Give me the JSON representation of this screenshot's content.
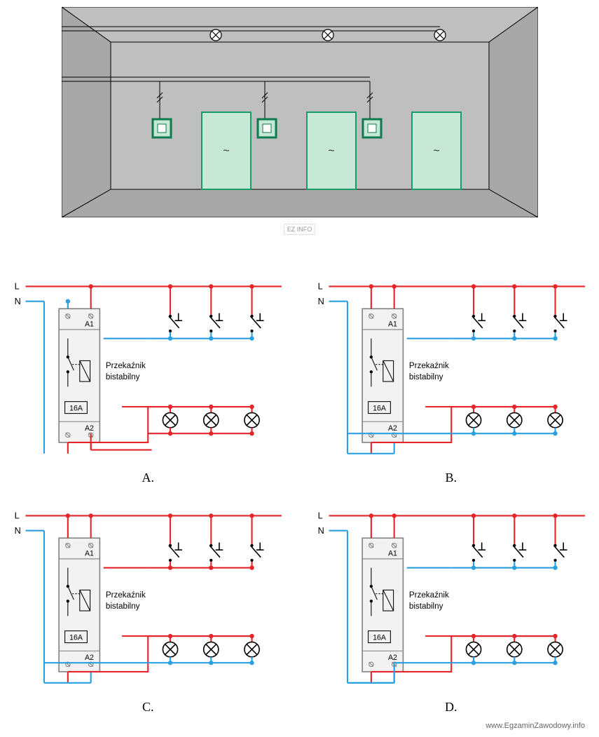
{
  "hallway": {
    "wall_color": "#bfbfbf",
    "wall_color_dark": "#a8a8a8",
    "door_fill": "#c7e8d6",
    "door_stroke": "#1a9c6a",
    "switch_fill": "#c7e8d6",
    "switch_stroke": "#0e7a4f",
    "lamp_stroke": "#000000",
    "wire_color": "#000000",
    "door_mark": "~",
    "num_doors": 3,
    "num_lamps": 3,
    "num_switches": 3
  },
  "schematics": {
    "common": {
      "L_label": "L",
      "N_label": "N",
      "relay_label_1": "Przekaźnik",
      "relay_label_2": "bistabilny",
      "relay_rating": "16A",
      "term_A1": "A1",
      "term_A2": "A2",
      "wire_L_color": "#e4252a",
      "wire_N_color": "#2aa0e0",
      "relay_stroke": "#808080",
      "relay_fill": "#f2f2f2",
      "lamp_stroke": "#000000",
      "button_stroke": "#000000",
      "font_family": "Arial",
      "label_fontsize": 11,
      "LN_fontsize": 12,
      "num_buttons": 3,
      "num_lamps": 3
    },
    "items": [
      {
        "id": "A",
        "contact_top": "N",
        "btn_return": "N",
        "a2_to": "L",
        "lamp_bus": "L"
      },
      {
        "id": "B",
        "contact_top": "L",
        "btn_return": "N",
        "a2_to": "N",
        "lamp_bus": "N"
      },
      {
        "id": "C",
        "contact_top": "L",
        "btn_return": "L",
        "a2_to": "N",
        "lamp_bus": "N"
      },
      {
        "id": "D",
        "contact_top": "L",
        "btn_return": "N",
        "a2_to": "N",
        "lamp_bus": "N_a2"
      }
    ]
  },
  "watermark": "EZ INFO",
  "footer": "www.EgzaminZawodowy.info"
}
